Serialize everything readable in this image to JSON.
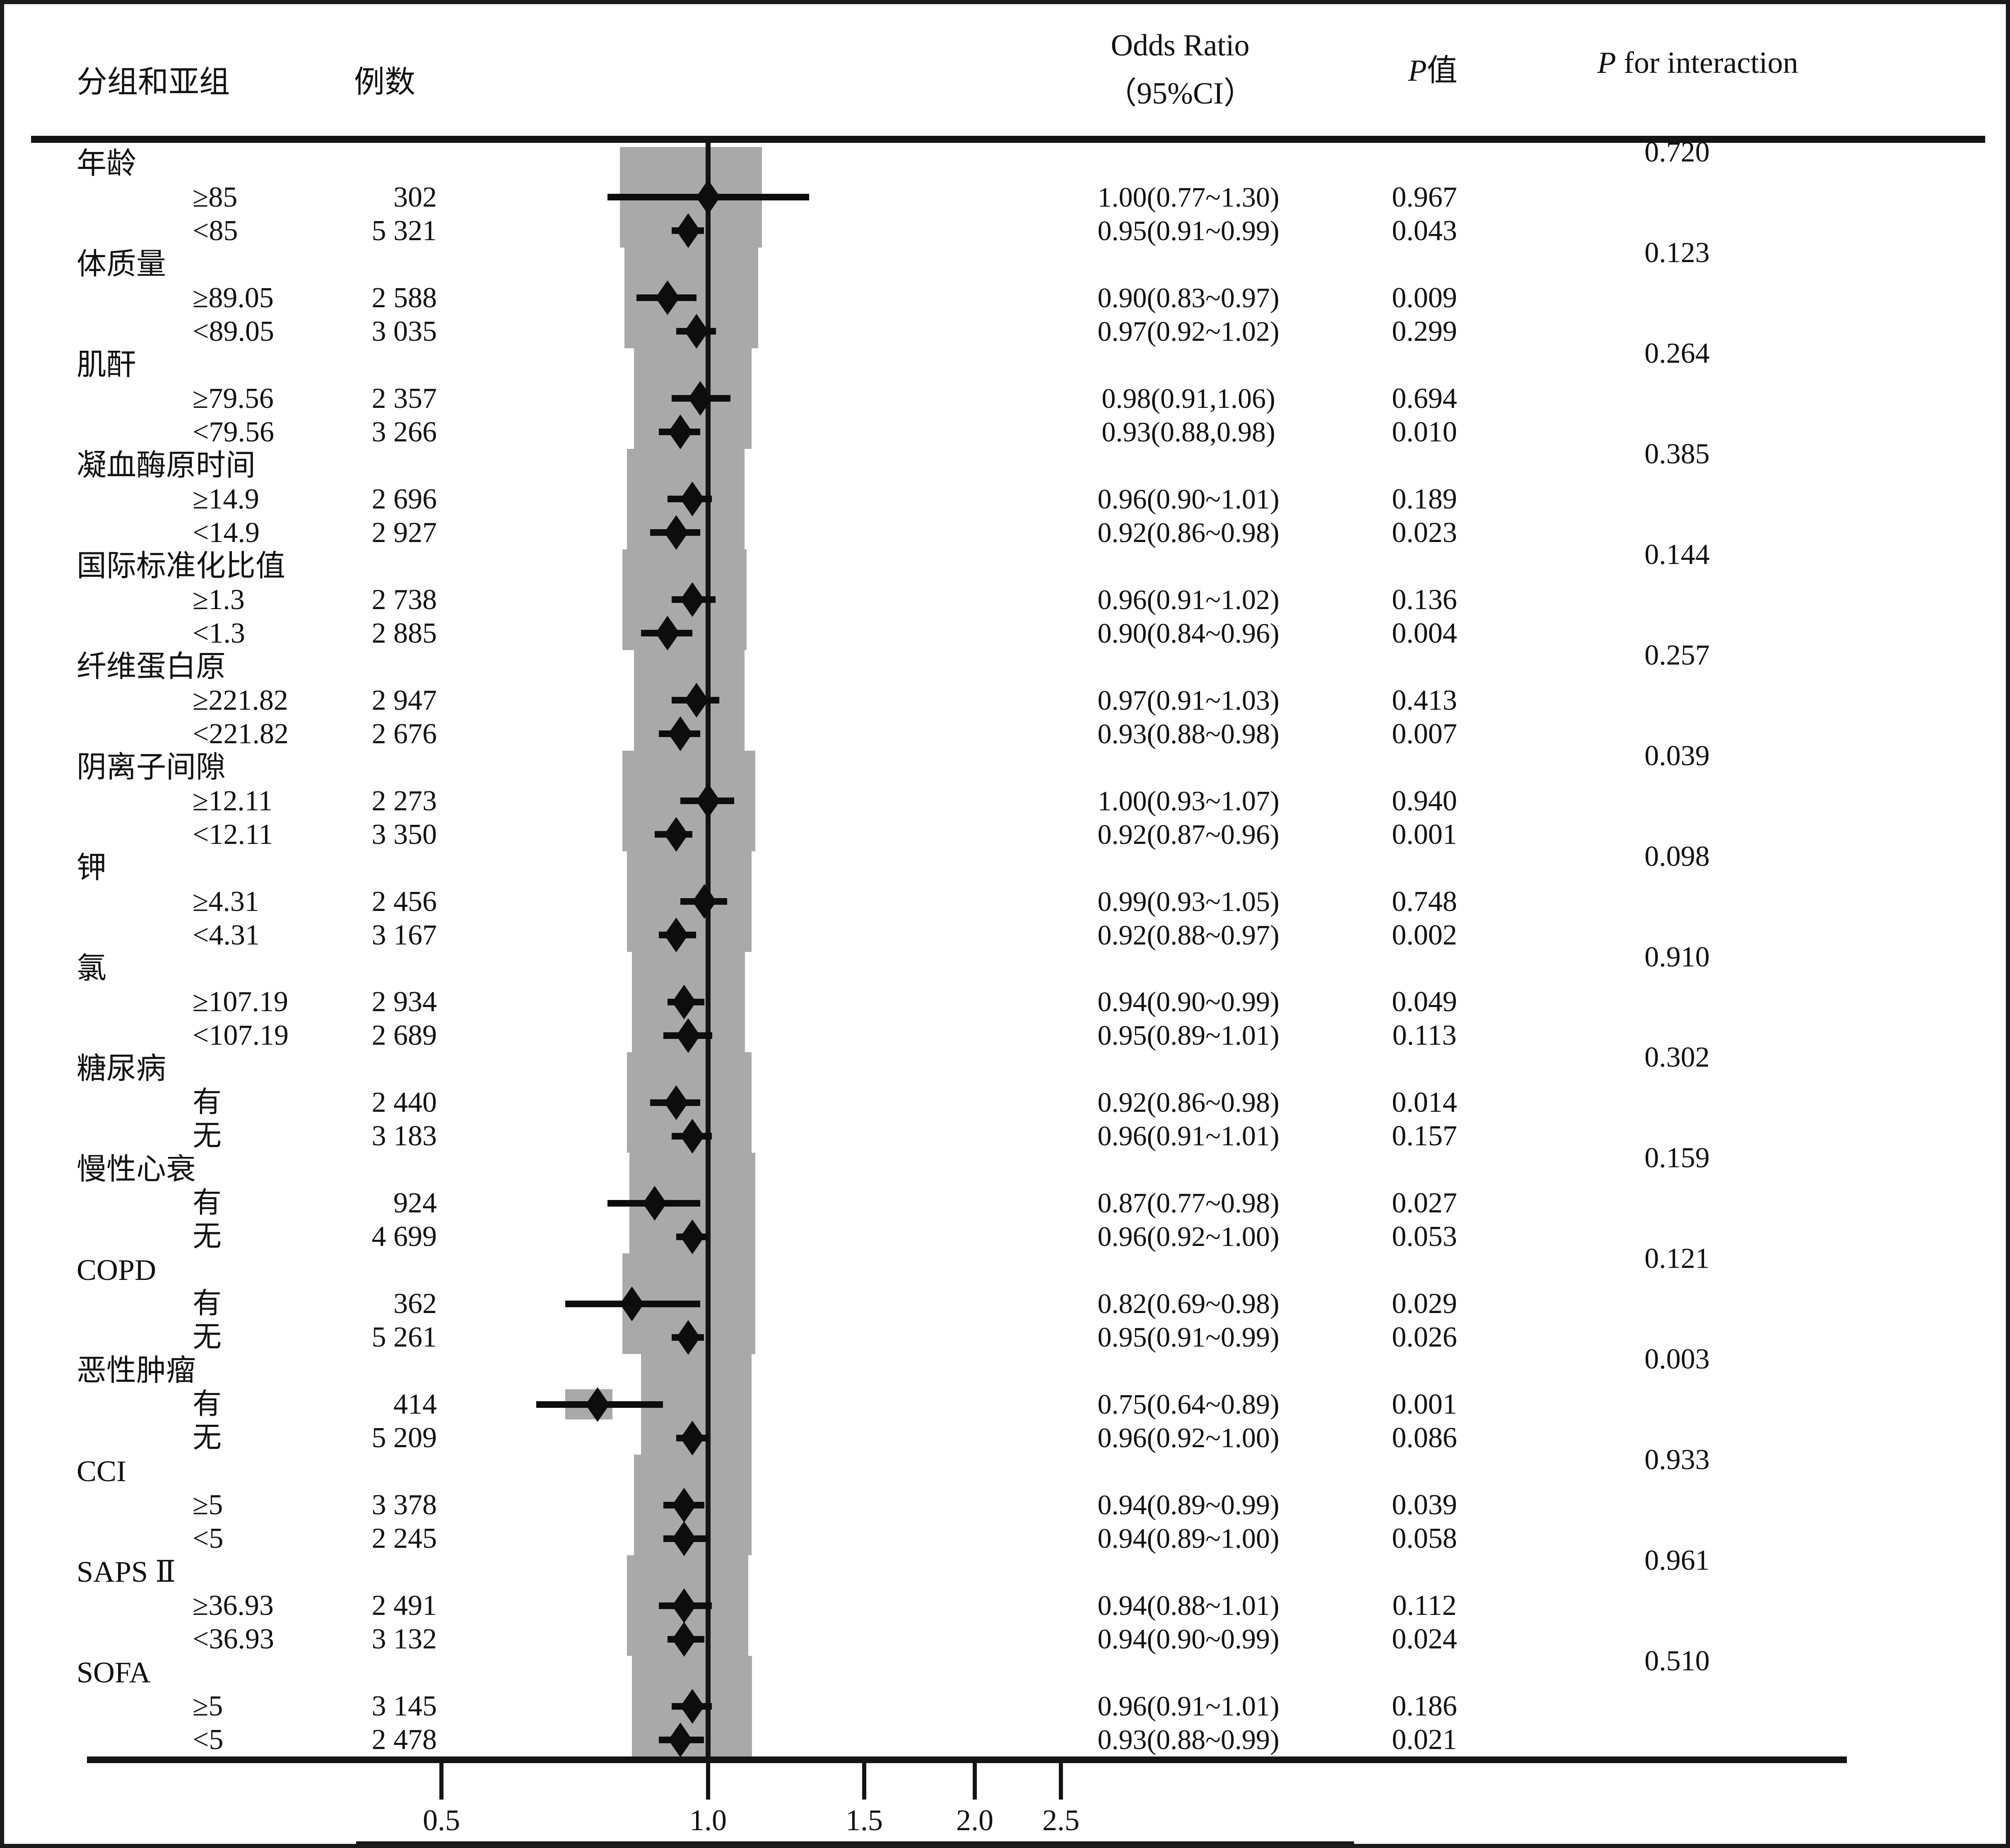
{
  "header": {
    "col_group": "分组和亚组",
    "col_n": "例数",
    "col_or1": "Odds Ratio",
    "col_or2": "（95%CI）",
    "col_p_italic": "P",
    "col_p_rest": "值",
    "col_pint_italic": "P",
    "col_pint_rest": " for interaction"
  },
  "axis": {
    "tick_labels": [
      "0.5",
      "1.0",
      "1.5",
      "2.0",
      "2.5"
    ],
    "tick_values": [
      0.5,
      1.0,
      1.5,
      2.0,
      2.5
    ],
    "reference_line": 1.0,
    "scale": "log10"
  },
  "colors": {
    "band_gray": "#a9a9a9",
    "ink_black": "#0d0d0d",
    "background": "#ffffff"
  },
  "chart_data": {
    "type": "scatter",
    "subtype": "forest-plot",
    "xlabel_ticks": [
      0.5,
      1.0,
      1.5,
      2.0,
      2.5
    ],
    "x_scale": "log10",
    "reference_or": 1.0,
    "groups": [
      {
        "label": "年龄",
        "p_interaction": "0.720",
        "band": [
          0.795,
          1.15
        ],
        "rows": [
          {
            "label": "≥85",
            "n": "302",
            "or": 1.0,
            "lo": 0.77,
            "hi": 1.3,
            "or_text": "1.00(0.77~1.30)",
            "p": "0.967"
          },
          {
            "label": "<85",
            "n": "5 321",
            "or": 0.95,
            "lo": 0.91,
            "hi": 0.99,
            "or_text": "0.95(0.91~0.99)",
            "p": "0.043"
          }
        ]
      },
      {
        "label": "体质量",
        "p_interaction": "0.123",
        "band": [
          0.805,
          1.14
        ],
        "rows": [
          {
            "label": "≥89.05",
            "n": "2 588",
            "or": 0.9,
            "lo": 0.83,
            "hi": 0.97,
            "or_text": "0.90(0.83~0.97)",
            "p": "0.009"
          },
          {
            "label": "<89.05",
            "n": "3 035",
            "or": 0.97,
            "lo": 0.92,
            "hi": 1.02,
            "or_text": "0.97(0.92~1.02)",
            "p": "0.299"
          }
        ]
      },
      {
        "label": "肌酐",
        "p_interaction": "0.264",
        "band": [
          0.825,
          1.12
        ],
        "rows": [
          {
            "label": "≥79.56",
            "n": "2 357",
            "or": 0.98,
            "lo": 0.91,
            "hi": 1.06,
            "or_text": "0.98(0.91,1.06)",
            "p": "0.694"
          },
          {
            "label": "<79.56",
            "n": "3 266",
            "or": 0.93,
            "lo": 0.88,
            "hi": 0.98,
            "or_text": "0.93(0.88,0.98)",
            "p": "0.010"
          }
        ]
      },
      {
        "label": "凝血酶原时间",
        "p_interaction": "0.385",
        "band": [
          0.81,
          1.1
        ],
        "rows": [
          {
            "label": "≥14.9",
            "n": "2 696",
            "or": 0.96,
            "lo": 0.9,
            "hi": 1.01,
            "or_text": "0.96(0.90~1.01)",
            "p": "0.189"
          },
          {
            "label": "<14.9",
            "n": "2 927",
            "or": 0.92,
            "lo": 0.86,
            "hi": 0.98,
            "or_text": "0.92(0.86~0.98)",
            "p": "0.023"
          }
        ]
      },
      {
        "label": "国际标准化比值",
        "p_interaction": "0.144",
        "band": [
          0.8,
          1.105
        ],
        "rows": [
          {
            "label": "≥1.3",
            "n": "2 738",
            "or": 0.96,
            "lo": 0.91,
            "hi": 1.02,
            "or_text": "0.96(0.91~1.02)",
            "p": "0.136"
          },
          {
            "label": "<1.3",
            "n": "2 885",
            "or": 0.9,
            "lo": 0.84,
            "hi": 0.96,
            "or_text": "0.90(0.84~0.96)",
            "p": "0.004"
          }
        ]
      },
      {
        "label": "纤维蛋白原",
        "p_interaction": "0.257",
        "band": [
          0.825,
          1.1
        ],
        "rows": [
          {
            "label": "≥221.82",
            "n": "2 947",
            "or": 0.97,
            "lo": 0.91,
            "hi": 1.03,
            "or_text": "0.97(0.91~1.03)",
            "p": "0.413"
          },
          {
            "label": "<221.82",
            "n": "2 676",
            "or": 0.93,
            "lo": 0.88,
            "hi": 0.98,
            "or_text": "0.93(0.88~0.98)",
            "p": "0.007"
          }
        ]
      },
      {
        "label": "阴离子间隙",
        "p_interaction": "0.039",
        "band": [
          0.8,
          1.13
        ],
        "rows": [
          {
            "label": "≥12.11",
            "n": "2 273",
            "or": 1.0,
            "lo": 0.93,
            "hi": 1.07,
            "or_text": "1.00(0.93~1.07)",
            "p": "0.940"
          },
          {
            "label": "<12.11",
            "n": "3 350",
            "or": 0.92,
            "lo": 0.87,
            "hi": 0.96,
            "or_text": "0.92(0.87~0.96)",
            "p": "0.001"
          }
        ]
      },
      {
        "label": "钾",
        "p_interaction": "0.098",
        "band": [
          0.81,
          1.12
        ],
        "rows": [
          {
            "label": "≥4.31",
            "n": "2 456",
            "or": 0.99,
            "lo": 0.93,
            "hi": 1.05,
            "or_text": "0.99(0.93~1.05)",
            "p": "0.748"
          },
          {
            "label": "<4.31",
            "n": "3 167",
            "or": 0.92,
            "lo": 0.88,
            "hi": 0.97,
            "or_text": "0.92(0.88~0.97)",
            "p": "0.002"
          }
        ]
      },
      {
        "label": "氯",
        "p_interaction": "0.910",
        "band": [
          0.82,
          1.1
        ],
        "rows": [
          {
            "label": "≥107.19",
            "n": "2 934",
            "or": 0.94,
            "lo": 0.9,
            "hi": 0.99,
            "or_text": "0.94(0.90~0.99)",
            "p": "0.049"
          },
          {
            "label": "<107.19",
            "n": "2 689",
            "or": 0.95,
            "lo": 0.89,
            "hi": 1.01,
            "or_text": "0.95(0.89~1.01)",
            "p": "0.113"
          }
        ]
      },
      {
        "label": "糖尿病",
        "p_interaction": "0.302",
        "band": [
          0.81,
          1.12
        ],
        "rows": [
          {
            "label": "有",
            "n": "2 440",
            "or": 0.92,
            "lo": 0.86,
            "hi": 0.98,
            "or_text": "0.92(0.86~0.98)",
            "p": "0.014"
          },
          {
            "label": "无",
            "n": "3 183",
            "or": 0.96,
            "lo": 0.91,
            "hi": 1.01,
            "or_text": "0.96(0.91~1.01)",
            "p": "0.157"
          }
        ]
      },
      {
        "label": "慢性心衰",
        "p_interaction": "0.159",
        "band": [
          0.815,
          1.13
        ],
        "rows": [
          {
            "label": "有",
            "n": "924",
            "or": 0.87,
            "lo": 0.77,
            "hi": 0.98,
            "or_text": "0.87(0.77~0.98)",
            "p": "0.027"
          },
          {
            "label": "无",
            "n": "4 699",
            "or": 0.96,
            "lo": 0.92,
            "hi": 1.0,
            "or_text": "0.96(0.92~1.00)",
            "p": "0.053"
          }
        ]
      },
      {
        "label": "COPD",
        "p_interaction": "0.121",
        "band": [
          0.8,
          1.13
        ],
        "rows": [
          {
            "label": "有",
            "n": "362",
            "or": 0.82,
            "lo": 0.69,
            "hi": 0.98,
            "or_text": "0.82(0.69~0.98)",
            "p": "0.029"
          },
          {
            "label": "无",
            "n": "5 261",
            "or": 0.95,
            "lo": 0.91,
            "hi": 0.99,
            "or_text": "0.95(0.91~0.99)",
            "p": "0.026"
          }
        ]
      },
      {
        "label": "恶性肿瘤",
        "p_interaction": "0.003",
        "band": [
          0.84,
          1.12
        ],
        "extra_band_row": 0,
        "extra_band": [
          0.69,
          0.78
        ],
        "rows": [
          {
            "label": "有",
            "n": "414",
            "or": 0.75,
            "lo": 0.64,
            "hi": 0.89,
            "or_text": "0.75(0.64~0.89)",
            "p": "0.001"
          },
          {
            "label": "无",
            "n": "5 209",
            "or": 0.96,
            "lo": 0.92,
            "hi": 1.0,
            "or_text": "0.96(0.92~1.00)",
            "p": "0.086"
          }
        ]
      },
      {
        "label": "CCI",
        "p_interaction": "0.933",
        "band": [
          0.825,
          1.12
        ],
        "rows": [
          {
            "label": "≥5",
            "n": "3 378",
            "or": 0.94,
            "lo": 0.89,
            "hi": 0.99,
            "or_text": "0.94(0.89~0.99)",
            "p": "0.039"
          },
          {
            "label": "<5",
            "n": "2 245",
            "or": 0.94,
            "lo": 0.89,
            "hi": 1.0,
            "or_text": "0.94(0.89~1.00)",
            "p": "0.058"
          }
        ]
      },
      {
        "label": "SAPS Ⅱ",
        "p_interaction": "0.961",
        "band": [
          0.81,
          1.11
        ],
        "rows": [
          {
            "label": "≥36.93",
            "n": "2 491",
            "or": 0.94,
            "lo": 0.88,
            "hi": 1.01,
            "or_text": "0.94(0.88~1.01)",
            "p": "0.112"
          },
          {
            "label": "<36.93",
            "n": "3 132",
            "or": 0.94,
            "lo": 0.9,
            "hi": 0.99,
            "or_text": "0.94(0.90~0.99)",
            "p": "0.024"
          }
        ]
      },
      {
        "label": "SOFA",
        "p_interaction": "0.510",
        "band": [
          0.82,
          1.12
        ],
        "rows": [
          {
            "label": "≥5",
            "n": "3 145",
            "or": 0.96,
            "lo": 0.91,
            "hi": 1.01,
            "or_text": "0.96(0.91~1.01)",
            "p": "0.186"
          },
          {
            "label": "<5",
            "n": "2 478",
            "or": 0.93,
            "lo": 0.88,
            "hi": 0.99,
            "or_text": "0.93(0.88~0.99)",
            "p": "0.021"
          }
        ]
      }
    ]
  }
}
